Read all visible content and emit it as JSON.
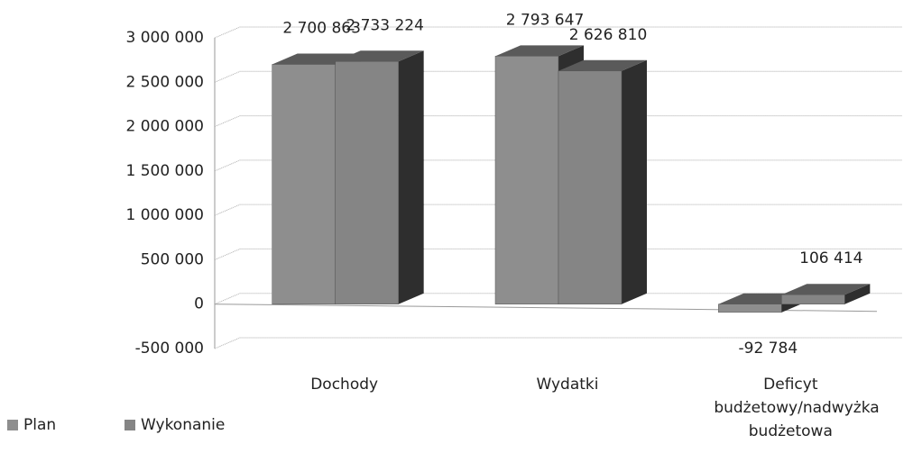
{
  "chart_data": {
    "type": "bar3d",
    "categories": [
      "Dochody",
      "Wydatki",
      "Deficyt budżetowy/nadwyżka budżetowa"
    ],
    "series": [
      {
        "name": "Plan",
        "color": "#8e8e8e",
        "values": [
          2700863,
          2793647,
          -92784
        ],
        "value_labels": [
          "2 700 863",
          "2 793 647",
          "-92 784"
        ]
      },
      {
        "name": "Wykonanie",
        "color": "#858585",
        "values": [
          2733224,
          2626810,
          106414
        ],
        "value_labels": [
          "2 733 224",
          "2 626 810",
          "106 414"
        ]
      }
    ],
    "ylim": [
      -500000,
      3000000
    ],
    "yticks": [
      {
        "value": -500000,
        "label": "-500 000"
      },
      0,
      {
        "value": 500000,
        "label": "500 000"
      },
      {
        "value": 1000000,
        "label": "1 000 000"
      },
      {
        "value": 1500000,
        "label": "1 500 000"
      },
      {
        "value": 2000000,
        "label": "2 000 000"
      },
      {
        "value": 2500000,
        "label": "2 500 000"
      },
      {
        "value": 3000000,
        "label": "3 000 000"
      }
    ],
    "grid": true,
    "legend": "bottom-left"
  }
}
